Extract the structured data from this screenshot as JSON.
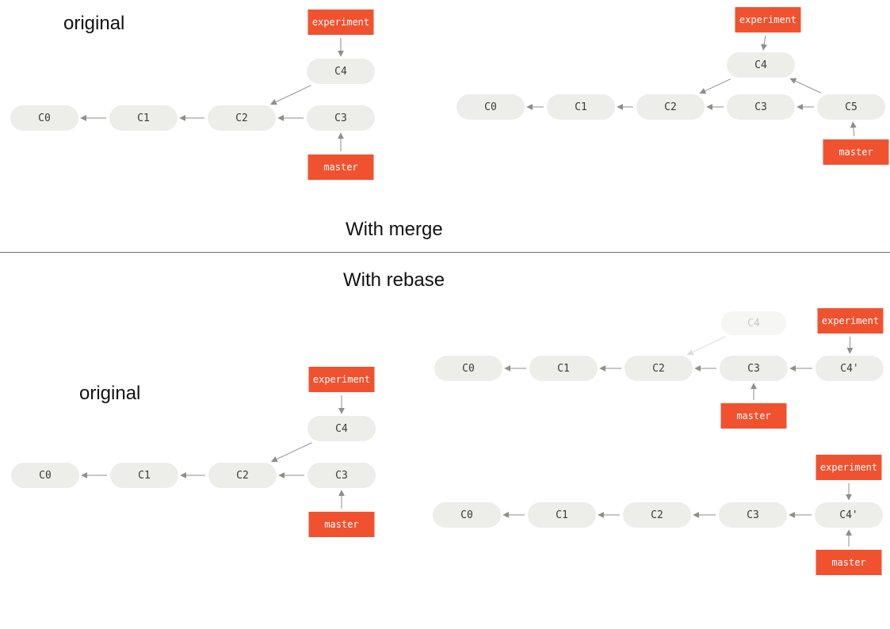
{
  "headings": {
    "original_top": "original",
    "with_merge": "With merge",
    "with_rebase": "With rebase",
    "original_bottom": "original"
  },
  "labels": {
    "c0": "C0",
    "c1": "C1",
    "c2": "C2",
    "c3": "C3",
    "c4": "C4",
    "c5": "C5",
    "c4_prime": "C4'",
    "experiment": "experiment",
    "master": "master"
  },
  "colors": {
    "commit_fill": "#ededea",
    "commit_text": "#3b3b3b",
    "commit_faded_text": "#c8c8c4",
    "branch_fill": "#f05230",
    "branch_text": "#ffffff",
    "arrow": "#8e8e8a",
    "divider": "#5a7394"
  }
}
